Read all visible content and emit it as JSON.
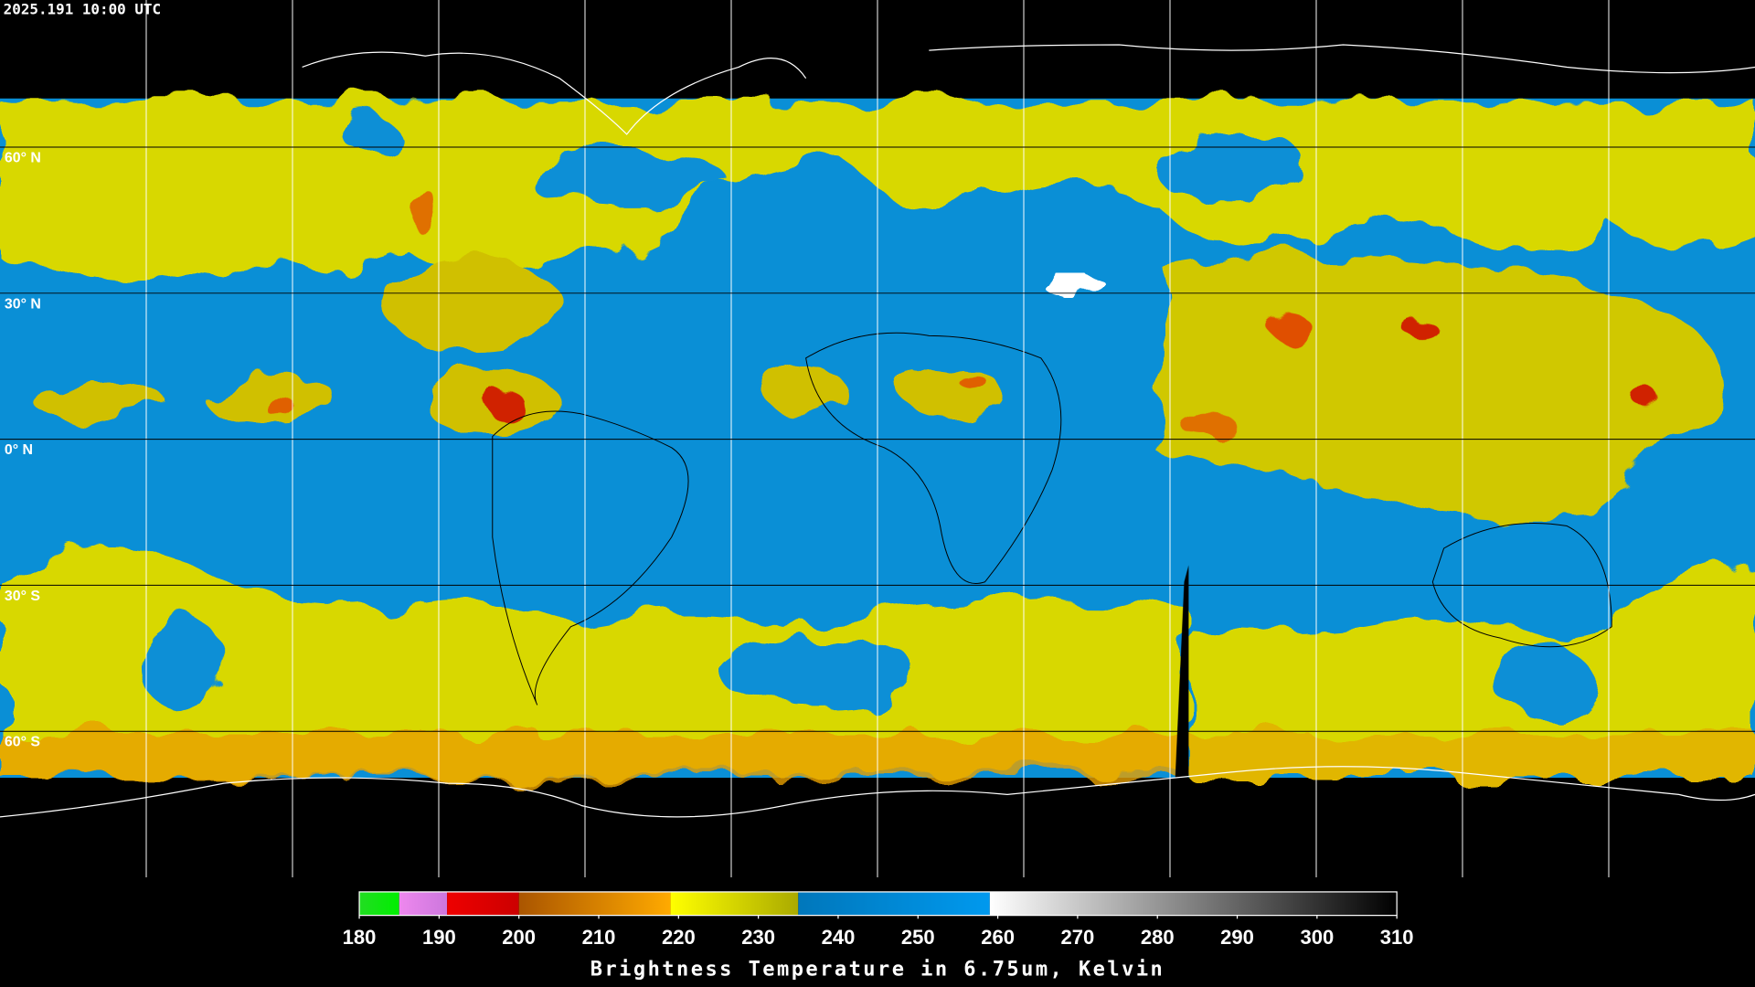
{
  "timestamp": "2025.191 10:00 UTC",
  "map": {
    "lat_range": [
      90,
      -90
    ],
    "lat_lines": [
      {
        "value": 60,
        "label": "60° N"
      },
      {
        "value": 30,
        "label": "30° N"
      },
      {
        "value": 0,
        "label": "0° N"
      },
      {
        "value": -30,
        "label": "30° S"
      },
      {
        "value": -60,
        "label": "60° S"
      }
    ]
  },
  "colorbar": {
    "title": "Brightness Temperature in 6.75um, Kelvin",
    "range": [
      180,
      310
    ],
    "ticks": [
      180,
      190,
      200,
      210,
      220,
      230,
      240,
      250,
      260,
      270,
      280,
      290,
      300,
      310
    ],
    "segments": [
      {
        "from": 180,
        "to": 185,
        "colors": [
          "#22dd22",
          "#00ee00"
        ]
      },
      {
        "from": 185,
        "to": 191,
        "colors": [
          "#ee88ee",
          "#cc77dd"
        ]
      },
      {
        "from": 191,
        "to": 200,
        "colors": [
          "#ee0000",
          "#cc0000"
        ]
      },
      {
        "from": 200,
        "to": 219,
        "colors": [
          "#aa5500",
          "#ffaa00"
        ]
      },
      {
        "from": 219,
        "to": 235,
        "colors": [
          "#ffff00",
          "#aaaa00"
        ]
      },
      {
        "from": 235,
        "to": 259,
        "colors": [
          "#0077bb",
          "#0099ee"
        ]
      },
      {
        "from": 259,
        "to": 310,
        "colors": [
          "#ffffff",
          "#000000"
        ]
      }
    ]
  }
}
